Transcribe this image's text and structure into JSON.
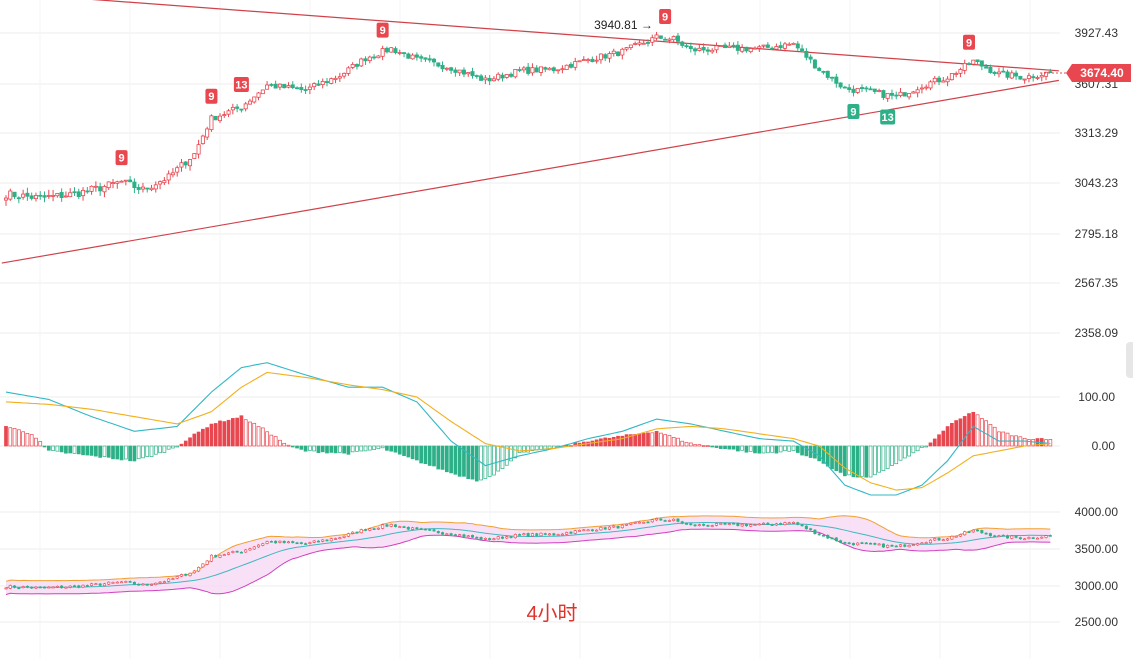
{
  "chart_data": [
    {
      "type": "candlestick",
      "panel": "price",
      "title": "",
      "y_ticks": [
        "3927.43",
        "3607.31",
        "3313.29",
        "3043.23",
        "2795.18",
        "2567.35",
        "2358.09"
      ],
      "last_price_label": "3674.40",
      "annotations": [
        {
          "label": "3940.81",
          "bar_index": 153,
          "price": 3940.81
        }
      ],
      "td_markers": [
        {
          "label": "9",
          "bar_index": 27,
          "side": "top",
          "color": "red"
        },
        {
          "label": "9",
          "bar_index": 48,
          "side": "top",
          "color": "red"
        },
        {
          "label": "13",
          "bar_index": 55,
          "side": "top",
          "color": "red"
        },
        {
          "label": "9",
          "bar_index": 88,
          "side": "top",
          "color": "red"
        },
        {
          "label": "9",
          "bar_index": 154,
          "side": "top",
          "color": "red"
        },
        {
          "label": "9",
          "bar_index": 198,
          "side": "bottom",
          "color": "green"
        },
        {
          "label": "13",
          "bar_index": 206,
          "side": "bottom",
          "color": "green"
        },
        {
          "label": "9",
          "bar_index": 225,
          "side": "top",
          "color": "red"
        }
      ],
      "trendlines": [
        {
          "from": [
            -1,
            4180
          ],
          "to": [
            246,
            3690
          ],
          "color": "#d0424a"
        },
        {
          "from": [
            -1,
            2660
          ],
          "to": [
            246,
            3630
          ],
          "color": "#d0424a"
        }
      ],
      "anchors": [
        [
          0,
          2990
        ],
        [
          8,
          2970
        ],
        [
          16,
          2990
        ],
        [
          22,
          3020
        ],
        [
          27,
          3050
        ],
        [
          32,
          3010
        ],
        [
          38,
          3075
        ],
        [
          44,
          3200
        ],
        [
          48,
          3400
        ],
        [
          55,
          3470
        ],
        [
          61,
          3600
        ],
        [
          70,
          3570
        ],
        [
          78,
          3660
        ],
        [
          84,
          3770
        ],
        [
          90,
          3830
        ],
        [
          96,
          3760
        ],
        [
          104,
          3710
        ],
        [
          112,
          3630
        ],
        [
          120,
          3690
        ],
        [
          128,
          3700
        ],
        [
          136,
          3760
        ],
        [
          144,
          3810
        ],
        [
          152,
          3900
        ],
        [
          156,
          3890
        ],
        [
          160,
          3820
        ],
        [
          168,
          3830
        ],
        [
          176,
          3830
        ],
        [
          184,
          3860
        ],
        [
          190,
          3700
        ],
        [
          196,
          3580
        ],
        [
          202,
          3560
        ],
        [
          208,
          3530
        ],
        [
          214,
          3600
        ],
        [
          220,
          3650
        ],
        [
          226,
          3750
        ],
        [
          232,
          3670
        ],
        [
          238,
          3650
        ],
        [
          244,
          3680
        ]
      ]
    },
    {
      "type": "macd",
      "panel": "indicator",
      "y_ticks": [
        "100.00",
        "0.00"
      ],
      "dif_anchors": [
        [
          0,
          110
        ],
        [
          10,
          95
        ],
        [
          20,
          60
        ],
        [
          30,
          30
        ],
        [
          40,
          40
        ],
        [
          48,
          110
        ],
        [
          55,
          160
        ],
        [
          61,
          170
        ],
        [
          70,
          145
        ],
        [
          80,
          120
        ],
        [
          88,
          120
        ],
        [
          96,
          90
        ],
        [
          104,
          10
        ],
        [
          112,
          -40
        ],
        [
          120,
          -20
        ],
        [
          128,
          -5
        ],
        [
          136,
          15
        ],
        [
          144,
          30
        ],
        [
          152,
          55
        ],
        [
          160,
          45
        ],
        [
          168,
          30
        ],
        [
          176,
          15
        ],
        [
          184,
          10
        ],
        [
          190,
          -20
        ],
        [
          196,
          -80
        ],
        [
          202,
          -100
        ],
        [
          208,
          -100
        ],
        [
          214,
          -80
        ],
        [
          220,
          -30
        ],
        [
          226,
          40
        ],
        [
          232,
          10
        ],
        [
          238,
          10
        ],
        [
          244,
          5
        ]
      ],
      "dea_anchors": [
        [
          0,
          90
        ],
        [
          10,
          85
        ],
        [
          20,
          75
        ],
        [
          30,
          60
        ],
        [
          40,
          45
        ],
        [
          48,
          70
        ],
        [
          55,
          120
        ],
        [
          61,
          150
        ],
        [
          70,
          140
        ],
        [
          80,
          125
        ],
        [
          88,
          115
        ],
        [
          96,
          100
        ],
        [
          104,
          50
        ],
        [
          112,
          5
        ],
        [
          120,
          -10
        ],
        [
          128,
          -5
        ],
        [
          136,
          5
        ],
        [
          144,
          15
        ],
        [
          152,
          35
        ],
        [
          160,
          40
        ],
        [
          168,
          35
        ],
        [
          176,
          25
        ],
        [
          184,
          15
        ],
        [
          190,
          0
        ],
        [
          196,
          -45
        ],
        [
          202,
          -75
        ],
        [
          208,
          -90
        ],
        [
          214,
          -85
        ],
        [
          220,
          -55
        ],
        [
          226,
          -20
        ],
        [
          232,
          -10
        ],
        [
          238,
          0
        ],
        [
          244,
          5
        ]
      ],
      "hist_anchors": [
        [
          0,
          40
        ],
        [
          6,
          25
        ],
        [
          10,
          -10
        ],
        [
          20,
          -20
        ],
        [
          30,
          -30
        ],
        [
          36,
          -15
        ],
        [
          40,
          0
        ],
        [
          48,
          45
        ],
        [
          55,
          60
        ],
        [
          61,
          30
        ],
        [
          66,
          0
        ],
        [
          70,
          -10
        ],
        [
          80,
          -15
        ],
        [
          88,
          -5
        ],
        [
          96,
          -30
        ],
        [
          104,
          -55
        ],
        [
          110,
          -70
        ],
        [
          114,
          -60
        ],
        [
          120,
          -15
        ],
        [
          128,
          -5
        ],
        [
          136,
          10
        ],
        [
          144,
          20
        ],
        [
          152,
          30
        ],
        [
          160,
          5
        ],
        [
          168,
          -5
        ],
        [
          176,
          -15
        ],
        [
          184,
          -10
        ],
        [
          190,
          -30
        ],
        [
          196,
          -60
        ],
        [
          202,
          -65
        ],
        [
          206,
          -45
        ],
        [
          212,
          -15
        ],
        [
          216,
          5
        ],
        [
          220,
          40
        ],
        [
          226,
          70
        ],
        [
          232,
          30
        ],
        [
          238,
          15
        ],
        [
          244,
          15
        ]
      ]
    },
    {
      "type": "bollinger",
      "panel": "bands",
      "y_ticks": [
        "4000.00",
        "3500.00",
        "3000.00",
        "2500.00"
      ],
      "period_label": "4小时"
    }
  ],
  "colors": {
    "up": "#e8474f",
    "down": "#2db087",
    "trendline": "#d0424a",
    "dif": "#31b8c6",
    "dea": "#f2b01e",
    "band_upper": "#f0a030",
    "band_lower": "#d040c0",
    "band_mid": "#40b8c0",
    "band_fill": "#f6d8f5",
    "grid": "#eeeeee",
    "price_tag": "#e8474f"
  },
  "seed": 7
}
